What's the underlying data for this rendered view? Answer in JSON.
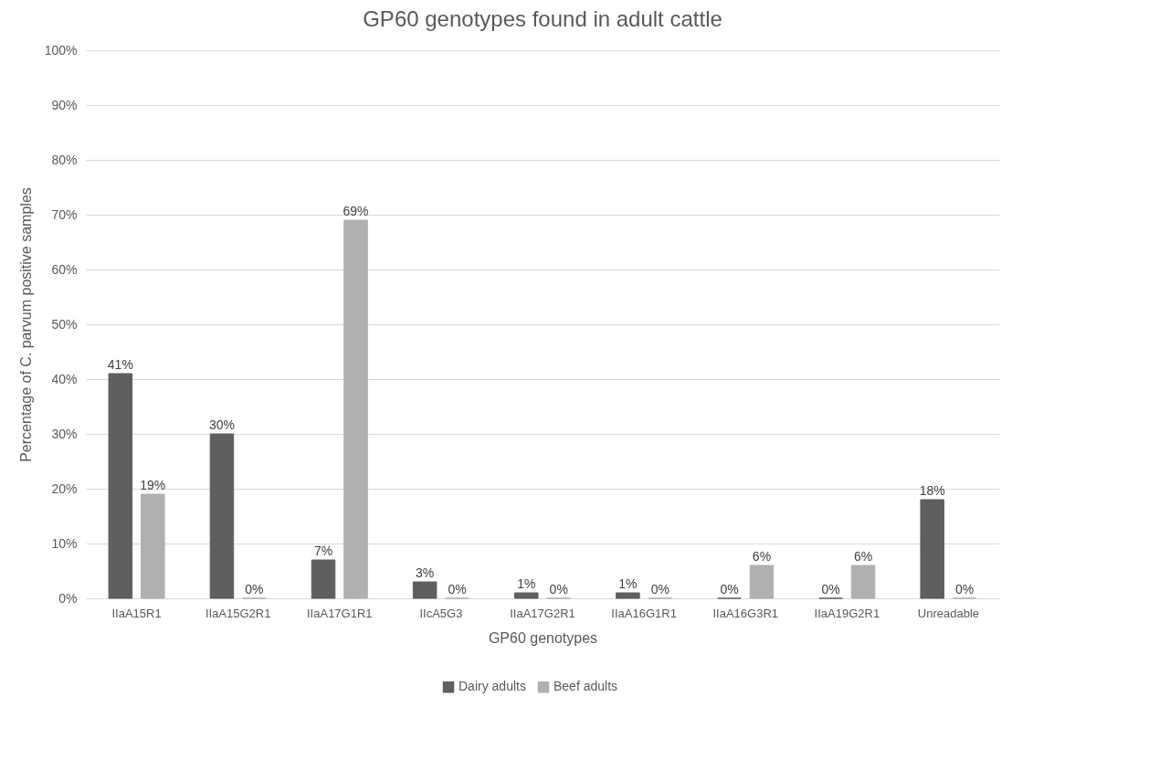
{
  "chart_data": {
    "type": "bar",
    "title": "GP60 genotypes found in adult cattle",
    "xlabel": "GP60 genotypes",
    "ylabel": "Percentage of C. parvum positive samples",
    "categories": [
      "IIaA15R1",
      "IIaA15G2R1",
      "IIaA17G1R1",
      "IIcA5G3",
      "IIaA17G2R1",
      "IIaA16G1R1",
      "IIaA16G3R1",
      "IIaA19G2R1",
      "Unreadable"
    ],
    "series": [
      {
        "name": "Dairy adults",
        "color": "#5f5f5f",
        "values": [
          41,
          30,
          7,
          3,
          1,
          1,
          0,
          0,
          18
        ],
        "value_labels": [
          "41%",
          "30%",
          "7%",
          "3%",
          "1%",
          "1%",
          "0%",
          "0%",
          "18%"
        ]
      },
      {
        "name": "Beef adults",
        "color": "#b0b0b0",
        "values": [
          19,
          0,
          69,
          0,
          0,
          0,
          6,
          6,
          0
        ],
        "value_labels": [
          "19%",
          "0%",
          "69%",
          "0%",
          "0%",
          "0%",
          "6%",
          "6%",
          "0%"
        ]
      }
    ],
    "ylim": [
      0,
      100
    ],
    "yticks": [
      {
        "value": 0,
        "label": "0%"
      },
      {
        "value": 10,
        "label": "10%"
      },
      {
        "value": 20,
        "label": "20%"
      },
      {
        "value": 30,
        "label": "30%"
      },
      {
        "value": 40,
        "label": "40%"
      },
      {
        "value": 50,
        "label": "50%"
      },
      {
        "value": 60,
        "label": "60%"
      },
      {
        "value": 70,
        "label": "70%"
      },
      {
        "value": 80,
        "label": "80%"
      },
      {
        "value": 90,
        "label": "90%"
      },
      {
        "value": 100,
        "label": "100%"
      }
    ],
    "grid": "y",
    "legend": "bottom"
  }
}
